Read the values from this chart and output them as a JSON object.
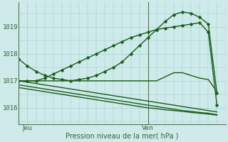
{
  "xlabel": "Pression niveau de la mer( hPa )",
  "background_color": "#ceeaea",
  "plot_bg_color": "#ceeaea",
  "grid_color": "#99cccc",
  "line_color": "#1a5c1a",
  "yticks": [
    1016,
    1017,
    1018,
    1019
  ],
  "ylim": [
    1015.4,
    1019.9
  ],
  "xlim": [
    0,
    24
  ],
  "xtick_positions": [
    1,
    15
  ],
  "xtick_labels": [
    "Jeu",
    "Ven"
  ],
  "vline_x": 15,
  "series": [
    {
      "y": [
        1017.8,
        1017.55,
        1017.35,
        1017.2,
        1017.1,
        1017.05,
        1017.0,
        1017.05,
        1017.1,
        1017.2,
        1017.35,
        1017.5,
        1017.7,
        1018.0,
        1018.3,
        1018.6,
        1018.9,
        1019.2,
        1019.45,
        1019.55,
        1019.5,
        1019.35,
        1019.1,
        1016.55
      ],
      "marker": true
    },
    {
      "y": [
        1017.0,
        1017.0,
        1017.0,
        1017.1,
        1017.25,
        1017.4,
        1017.55,
        1017.7,
        1017.85,
        1018.0,
        1018.15,
        1018.3,
        1018.45,
        1018.6,
        1018.7,
        1018.8,
        1018.9,
        1018.95,
        1019.0,
        1019.05,
        1019.1,
        1019.15,
        1018.8,
        1016.1
      ],
      "marker": true
    },
    {
      "y": [
        1017.0,
        1017.0,
        1017.0,
        1017.0,
        1017.0,
        1017.0,
        1017.0,
        1017.0,
        1017.0,
        1017.0,
        1017.0,
        1017.0,
        1017.0,
        1017.0,
        1017.0,
        1017.0,
        1017.0,
        1017.15,
        1017.3,
        1017.3,
        1017.2,
        1017.1,
        1017.05,
        1016.6
      ],
      "marker": false
    },
    {
      "y": [
        1017.0,
        1016.95,
        1016.9,
        1016.85,
        1016.8,
        1016.75,
        1016.7,
        1016.65,
        1016.6,
        1016.55,
        1016.5,
        1016.45,
        1016.4,
        1016.35,
        1016.3,
        1016.25,
        1016.2,
        1016.15,
        1016.1,
        1016.05,
        1016.0,
        1015.95,
        1015.9,
        1015.85
      ],
      "marker": false
    },
    {
      "y": [
        1016.85,
        1016.8,
        1016.75,
        1016.7,
        1016.65,
        1016.6,
        1016.55,
        1016.5,
        1016.45,
        1016.4,
        1016.35,
        1016.3,
        1016.25,
        1016.2,
        1016.15,
        1016.1,
        1016.05,
        1016.0,
        1015.95,
        1015.9,
        1015.87,
        1015.83,
        1015.8,
        1015.75
      ],
      "marker": false
    },
    {
      "y": [
        1016.75,
        1016.7,
        1016.65,
        1016.6,
        1016.55,
        1016.5,
        1016.45,
        1016.4,
        1016.35,
        1016.3,
        1016.25,
        1016.2,
        1016.15,
        1016.1,
        1016.05,
        1016.0,
        1015.97,
        1015.93,
        1015.9,
        1015.87,
        1015.83,
        1015.8,
        1015.77,
        1015.73
      ],
      "marker": false
    }
  ],
  "marker": "D",
  "markersize": 2.5,
  "linewidth": 1.0,
  "figsize": [
    3.2,
    2.0
  ],
  "dpi": 100
}
